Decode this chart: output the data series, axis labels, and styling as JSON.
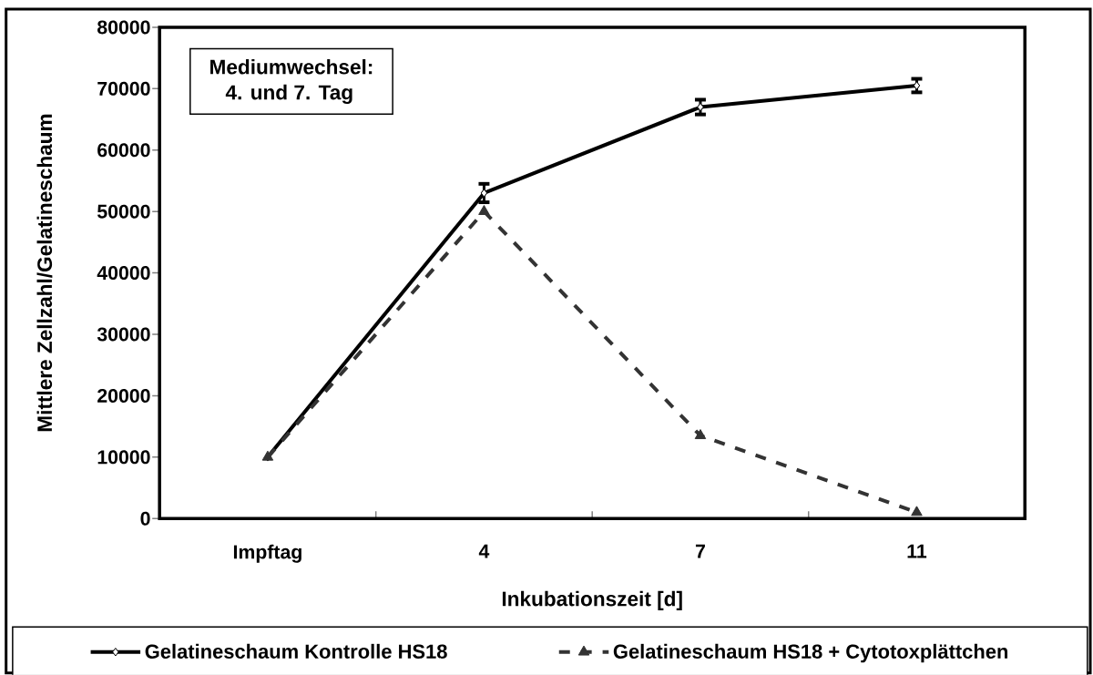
{
  "chart_data": {
    "type": "line",
    "xlabel": "Inkubationszeit [d]",
    "ylabel": "Mittlere Zellzahl/Gelatineschaum",
    "categories": [
      "Impftag",
      "4",
      "7",
      "11"
    ],
    "series": [
      {
        "name": "Gelatineschaum Kontrolle HS18",
        "color": "#000000",
        "values": [
          10000,
          53000,
          67000,
          70500
        ],
        "errors": [
          null,
          1500,
          1200,
          1100
        ],
        "marker": "diamond",
        "line_style": "solid"
      },
      {
        "name": "Gelatineschaum HS18 + Cytotoxplättchen",
        "color": "#333333",
        "values": [
          10000,
          50000,
          13500,
          1000
        ],
        "marker": "triangle",
        "line_style": "dashed"
      }
    ],
    "ylim": [
      0,
      80000
    ],
    "yticks": [
      0,
      10000,
      20000,
      30000,
      40000,
      50000,
      60000,
      70000,
      80000
    ],
    "grid": false,
    "legend": "bottom",
    "annotations": [
      "Mediumwechsel:",
      "4. und 7. Tag"
    ]
  }
}
